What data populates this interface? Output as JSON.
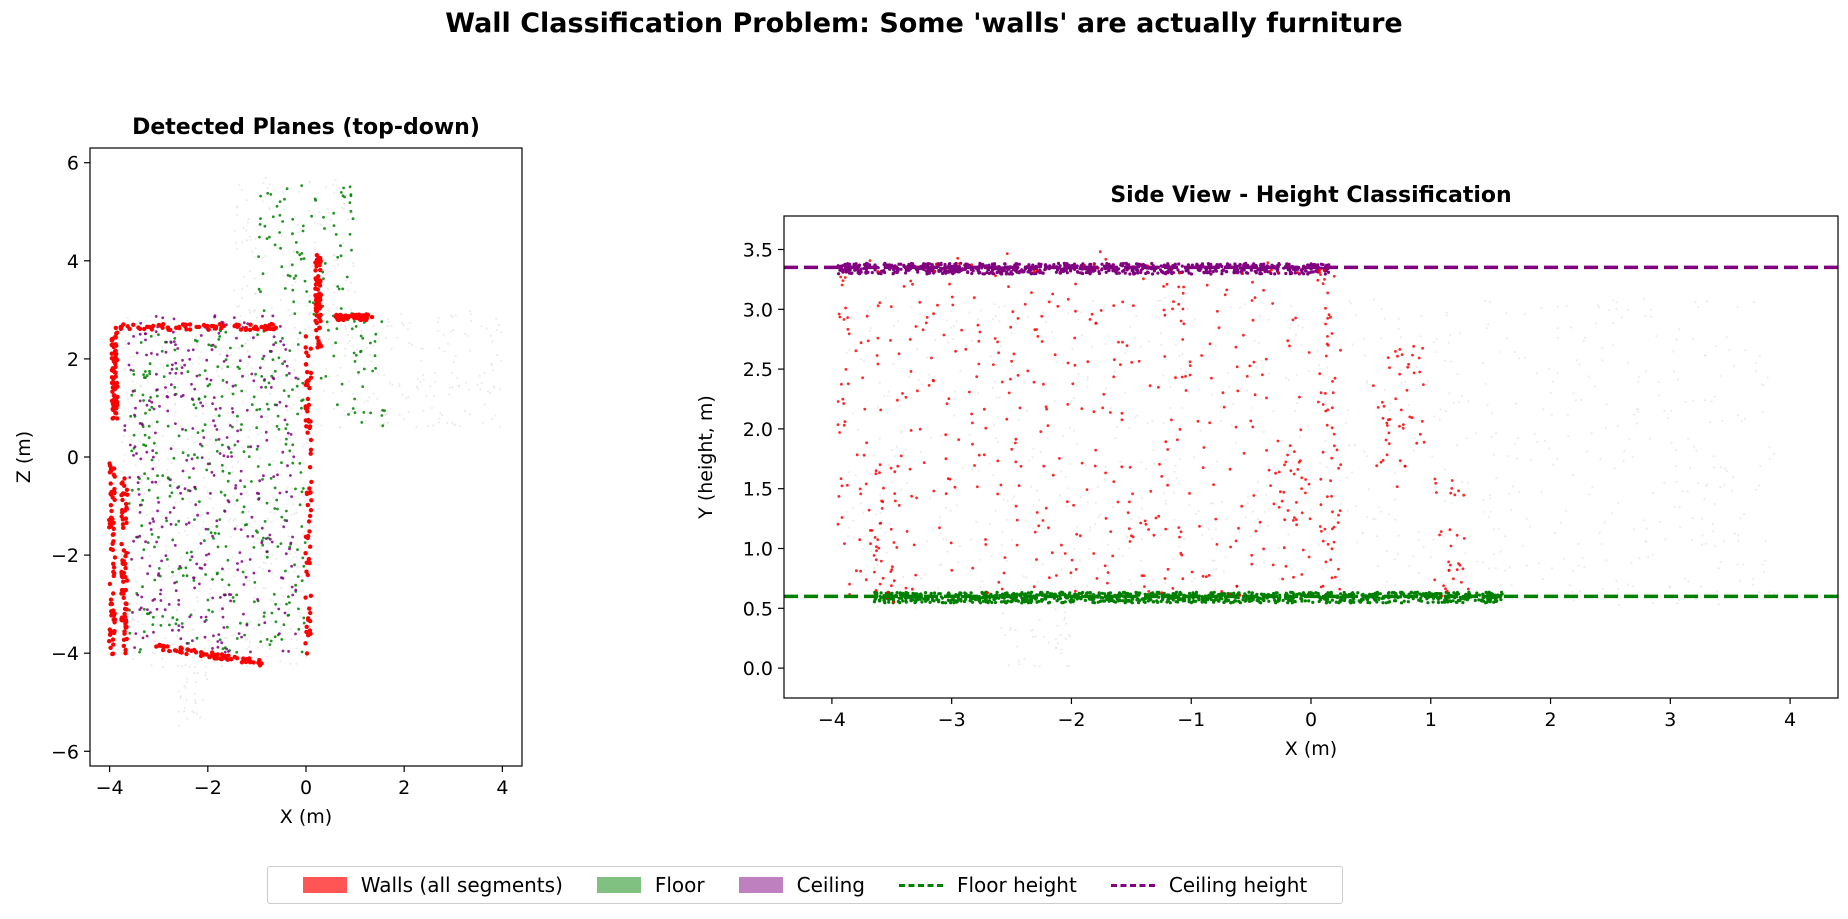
{
  "figure": {
    "suptitle": "Wall Classification Problem: Some 'walls' are actually furniture"
  },
  "colors": {
    "wall": "#ff0000",
    "floor": "#008000",
    "ceiling": "#800080",
    "background_points": "#d9d9d9"
  },
  "legend": {
    "placement": "bottom-center",
    "items": [
      {
        "label": "Walls (all segments)",
        "kind": "patch",
        "color": "#ff5555"
      },
      {
        "label": "Floor",
        "kind": "patch",
        "color": "#80c080"
      },
      {
        "label": "Ceiling",
        "kind": "patch",
        "color": "#bf80bf"
      },
      {
        "label": "Floor height",
        "kind": "dashed-line",
        "color": "#008000"
      },
      {
        "label": "Ceiling height",
        "kind": "dashed-line",
        "color": "#800080"
      }
    ]
  },
  "chart_data": [
    {
      "type": "scatter",
      "title": "Detected Planes (top-down)",
      "xlabel": "X (m)",
      "ylabel": "Z (m)",
      "xlim": [
        -4.4,
        4.4
      ],
      "ylim": [
        -6.3,
        6.3
      ],
      "xticks": [
        -4,
        -2,
        0,
        2,
        4
      ],
      "yticks": [
        -6,
        -4,
        -2,
        0,
        2,
        4,
        6
      ],
      "xtick_labels": [
        "−4",
        "−2",
        "0",
        "2",
        "4"
      ],
      "ytick_labels": [
        "−6",
        "−4",
        "−2",
        "0",
        "2",
        "4",
        "6"
      ],
      "grid": false,
      "series": [
        {
          "role": "walls",
          "color": "#ff0000",
          "segments": [
            {
              "x": [
                -3.9,
                -0.5
              ],
              "y": [
                2.65,
                2.65
              ]
            },
            {
              "x": [
                -3.9,
                -3.9
              ],
              "y": [
                0.8,
                2.6
              ]
            },
            {
              "x": [
                -3.95,
                -3.95
              ],
              "y": [
                -4.0,
                -0.1
              ]
            },
            {
              "x": [
                -3.7,
                -3.7
              ],
              "y": [
                -4.0,
                -0.4
              ]
            },
            {
              "x": [
                -3.1,
                -0.9
              ],
              "y": [
                -3.85,
                -4.2
              ]
            },
            {
              "x": [
                0.05,
                0.05
              ],
              "y": [
                -4.0,
                2.5
              ]
            },
            {
              "x": [
                0.25,
                0.25
              ],
              "y": [
                2.2,
                4.1
              ]
            },
            {
              "x": [
                0.6,
                1.3
              ],
              "y": [
                2.85,
                2.85
              ]
            }
          ]
        },
        {
          "role": "floor",
          "color": "#008000",
          "regions": [
            {
              "x": [
                -3.6,
                0.0
              ],
              "y": [
                -4.0,
                2.6
              ]
            },
            {
              "x": [
                -1.0,
                1.0
              ],
              "y": [
                2.6,
                5.6
              ]
            },
            {
              "x": [
                0.3,
                1.6
              ],
              "y": [
                0.6,
                2.9
              ]
            }
          ]
        },
        {
          "role": "ceiling",
          "color": "#800080",
          "regions": [
            {
              "x": [
                -3.7,
                -0.2
              ],
              "y": [
                -4.0,
                2.9
              ]
            }
          ]
        },
        {
          "role": "other_points",
          "color": "#d9d9d9",
          "regions": [
            {
              "x": [
                -3.8,
                0.1
              ],
              "y": [
                -4.3,
                2.9
              ]
            },
            {
              "x": [
                -1.5,
                1.0
              ],
              "y": [
                2.9,
                5.7
              ]
            },
            {
              "x": [
                0.3,
                4.0
              ],
              "y": [
                0.6,
                3.0
              ]
            },
            {
              "x": [
                -2.6,
                -2.0
              ],
              "y": [
                -5.6,
                -4.2
              ]
            }
          ]
        }
      ]
    },
    {
      "type": "scatter",
      "title": "Side View - Height Classification",
      "xlabel": "X (m)",
      "ylabel": "Y (height, m)",
      "xlim": [
        -4.4,
        4.4
      ],
      "ylim": [
        -0.25,
        3.78
      ],
      "xticks": [
        -4,
        -3,
        -2,
        -1,
        0,
        1,
        2,
        3,
        4
      ],
      "yticks": [
        0.0,
        0.5,
        1.0,
        1.5,
        2.0,
        2.5,
        3.0,
        3.5
      ],
      "xtick_labels": [
        "−4",
        "−3",
        "−2",
        "−1",
        "0",
        "1",
        "2",
        "3",
        "4"
      ],
      "ytick_labels": [
        "0.0",
        "0.5",
        "1.0",
        "1.5",
        "2.0",
        "2.5",
        "3.0",
        "3.5"
      ],
      "grid": false,
      "reference_lines": [
        {
          "label": "Floor height",
          "y": 0.6,
          "style": "dashed",
          "color": "#008000"
        },
        {
          "label": "Ceiling height",
          "y": 3.35,
          "style": "dashed",
          "color": "#800080"
        }
      ],
      "series": [
        {
          "role": "walls",
          "color": "#ff0000",
          "regions": [
            {
              "x": [
                -3.95,
                -3.85
              ],
              "y": [
                0.6,
                3.43
              ]
            },
            {
              "x": [
                -3.65,
                -3.45
              ],
              "y": [
                0.55,
                1.7
              ]
            },
            {
              "x": [
                0.05,
                0.2
              ],
              "y": [
                0.65,
                3.4
              ]
            },
            {
              "x": [
                0.1,
                0.25
              ],
              "y": [
                0.65,
                3.0
              ]
            },
            {
              "x": [
                -3.8,
                0.0
              ],
              "y": [
                0.6,
                3.5
              ]
            },
            {
              "x": [
                0.5,
                0.95
              ],
              "y": [
                1.5,
                2.7
              ]
            },
            {
              "x": [
                1.0,
                1.35
              ],
              "y": [
                0.6,
                1.6
              ]
            },
            {
              "x": [
                -0.35,
                0.0
              ],
              "y": [
                1.2,
                1.9
              ]
            }
          ]
        },
        {
          "role": "floor",
          "color": "#008000",
          "band": {
            "x": [
              -3.65,
              1.6
            ],
            "y": 0.59
          }
        },
        {
          "role": "ceiling",
          "color": "#800080",
          "band": {
            "x": [
              -3.95,
              0.15
            ],
            "y": 3.34
          }
        },
        {
          "role": "other_points",
          "color": "#d9d9d9",
          "regions": [
            {
              "x": [
                -3.9,
                3.9
              ],
              "y": [
                0.5,
                3.1
              ]
            },
            {
              "x": [
                -2.6,
                -2.0
              ],
              "y": [
                0.0,
                0.6
              ]
            }
          ]
        }
      ]
    }
  ]
}
